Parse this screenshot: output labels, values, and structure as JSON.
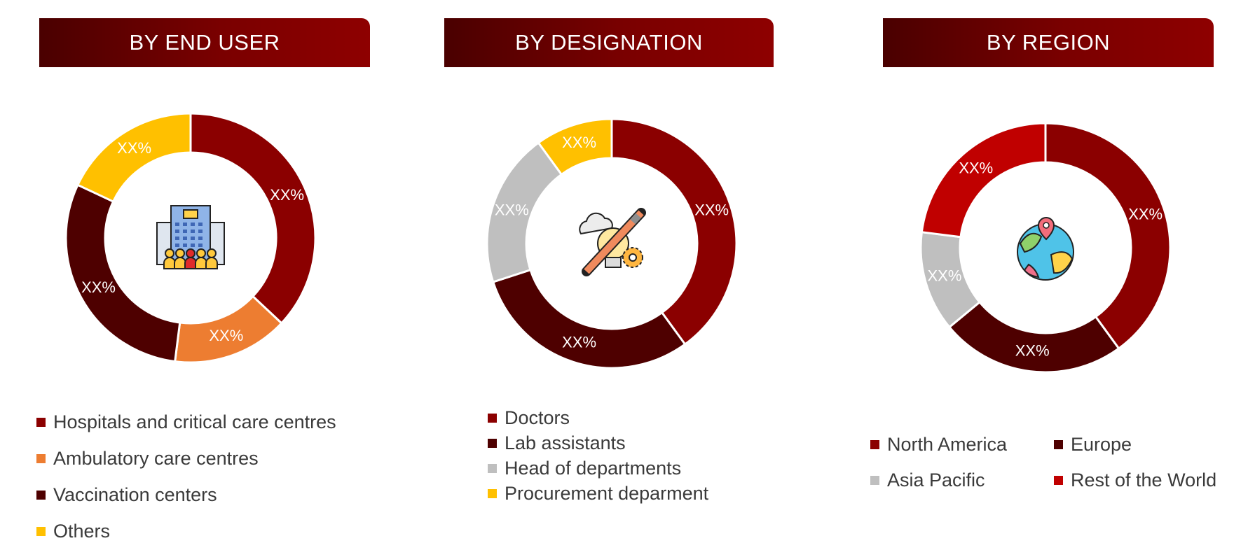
{
  "chart_data": [
    {
      "type": "pie",
      "title": "BY END USER",
      "series": [
        {
          "name": "Hospitals and critical care centres",
          "value": 37,
          "label": "XX%",
          "color": "#8b0000"
        },
        {
          "name": "Ambulatory care centres",
          "value": 15,
          "label": "XX%",
          "color": "#ed7d31"
        },
        {
          "name": "Vaccination centers",
          "value": 30,
          "label": "XX%",
          "color": "#4e0000"
        },
        {
          "name": "Others",
          "value": 18,
          "label": "XX%",
          "color": "#ffc000"
        }
      ],
      "legend_position": "bottom",
      "center_icon": "hospital-building-icon"
    },
    {
      "type": "pie",
      "title": "BY DESIGNATION",
      "series": [
        {
          "name": "Doctors",
          "value": 40,
          "label": "XX%",
          "color": "#8b0000"
        },
        {
          "name": "Lab assistants",
          "value": 30,
          "label": "XX%",
          "color": "#4e0000"
        },
        {
          "name": "Head of departments",
          "value": 20,
          "label": "XX%",
          "color": "#bfbfbf"
        },
        {
          "name": "Procurement deparment",
          "value": 10,
          "label": "XX%",
          "color": "#ffc000"
        }
      ],
      "legend_position": "bottom",
      "center_icon": "creative-idea-icon"
    },
    {
      "type": "pie",
      "title": "BY REGION",
      "series": [
        {
          "name": "North America",
          "value": 40,
          "label": "XX%",
          "color": "#8b0000"
        },
        {
          "name": "Europe",
          "value": 24,
          "label": "XX%",
          "color": "#4e0000"
        },
        {
          "name": "Asia Pacific",
          "value": 13,
          "label": "XX%",
          "color": "#bfbfbf"
        },
        {
          "name": "Rest of the World",
          "value": 23,
          "label": "XX%",
          "color": "#c00000"
        }
      ],
      "legend_position": "bottom",
      "center_icon": "globe-location-icon"
    }
  ]
}
